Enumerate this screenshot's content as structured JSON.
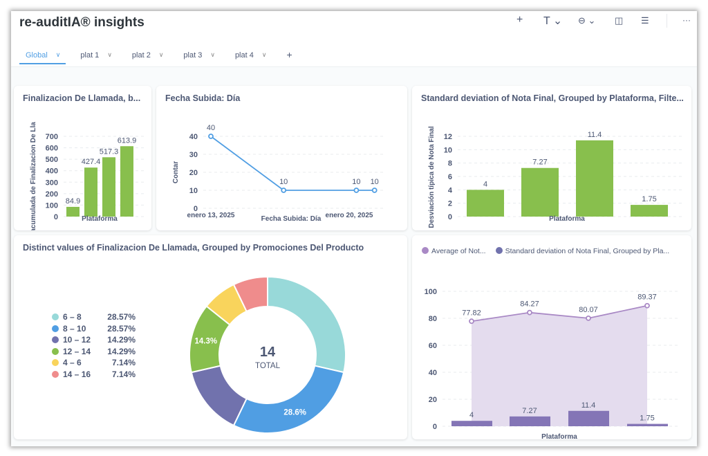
{
  "header": {
    "title": "re-auditIA® insights",
    "toolbar": [
      {
        "icon": "plus-icon",
        "glyph": "+"
      },
      {
        "icon": "text-icon",
        "glyph": "T ⌄"
      },
      {
        "icon": "link-icon",
        "glyph": "⊖ ⌄"
      },
      {
        "icon": "sidebar-layout-icon",
        "glyph": "◫"
      },
      {
        "icon": "filter-icon",
        "glyph": "☰"
      },
      {
        "icon": "more-icon",
        "glyph": "···"
      }
    ]
  },
  "tabs": [
    {
      "label": "Global",
      "active": true
    },
    {
      "label": "plat 1"
    },
    {
      "label": "plat 2"
    },
    {
      "label": "plat 3"
    },
    {
      "label": "plat 4"
    }
  ],
  "add_tab": "+",
  "chart_data": [
    {
      "type": "bar",
      "title": "Finalizacion De Llamada, b...",
      "xlabel": "Plataforma",
      "ylabel": "acumulada de Finalizacion De Lla",
      "ylim": [
        0,
        700
      ],
      "yticks": [
        0,
        100,
        200,
        300,
        400,
        500,
        600,
        700
      ],
      "values": [
        84.9,
        427.4,
        517.3,
        613.9
      ],
      "labels": [
        "84.9",
        "427.4",
        "517.3",
        "613.9"
      ],
      "color": "#88bf4d",
      "grid": true
    },
    {
      "type": "line",
      "title": "Fecha Subida: Día",
      "xlabel": "Fecha Subida: Día",
      "ylabel": "Contar",
      "ylim": [
        0,
        40
      ],
      "yticks": [
        0,
        10,
        20,
        30,
        40
      ],
      "xticks": [
        "enero 13, 2025",
        "enero 20, 2025"
      ],
      "x": [
        "2025-01-13",
        "2025-01-17",
        "2025-01-21",
        "2025-01-22"
      ],
      "values": [
        40,
        10,
        10,
        10
      ],
      "labels": [
        "40",
        "10",
        "10",
        "10"
      ],
      "color": "#509ee3",
      "grid": true
    },
    {
      "type": "bar",
      "title": "Standard deviation of Nota Final, Grouped by Plataforma, Filte...",
      "xlabel": "Plataforma",
      "ylabel": "Desviación típica de Nota Final",
      "ylim": [
        0,
        12
      ],
      "yticks": [
        0,
        2,
        4,
        6,
        8,
        10,
        12
      ],
      "values": [
        4,
        7.27,
        11.4,
        1.75
      ],
      "labels": [
        "4",
        "7.27",
        "11.4",
        "1.75"
      ],
      "color": "#88bf4d",
      "grid": true
    },
    {
      "type": "pie",
      "title": "Distinct values of Finalizacion De Llamada, Grouped by Promociones Del Producto",
      "total": "14",
      "total_label": "TOTAL",
      "slices": [
        {
          "label": "6 – 8",
          "pct": "28.57%",
          "value": 28.57,
          "color": "#98d9d9"
        },
        {
          "label": "8 – 10",
          "pct": "28.57%",
          "value": 28.57,
          "color": "#509ee3",
          "inner": "28.6%"
        },
        {
          "label": "10 – 12",
          "pct": "14.29%",
          "value": 14.29,
          "color": "#7172ad"
        },
        {
          "label": "12 – 14",
          "pct": "14.29%",
          "value": 14.29,
          "color": "#88bf4d",
          "inner": "14.3%"
        },
        {
          "label": "4 – 6",
          "pct": "7.14%",
          "value": 7.14,
          "color": "#f9d45c"
        },
        {
          "label": "14 – 16",
          "pct": "7.14%",
          "value": 7.14,
          "color": "#ef8c8c"
        }
      ]
    },
    {
      "type": "bar",
      "xlabel": "Plataforma",
      "ylim": [
        0,
        100
      ],
      "yticks": [
        0,
        20,
        40,
        60,
        80,
        100
      ],
      "legend": "top-left",
      "grid": true,
      "series": [
        {
          "name": "Average of Not...",
          "type": "area",
          "values": [
            77.82,
            84.27,
            80.07,
            89.37
          ],
          "labels": [
            "77.82",
            "84.27",
            "80.07",
            "89.37"
          ],
          "color": "#a989c5"
        },
        {
          "name": "Standard deviation of Nota Final, Grouped by Pla...",
          "type": "bar",
          "values": [
            4,
            7.27,
            11.4,
            1.75
          ],
          "labels": [
            "4",
            "7.27",
            "11.4",
            "1.75"
          ],
          "color": "#7172ad"
        }
      ]
    }
  ]
}
